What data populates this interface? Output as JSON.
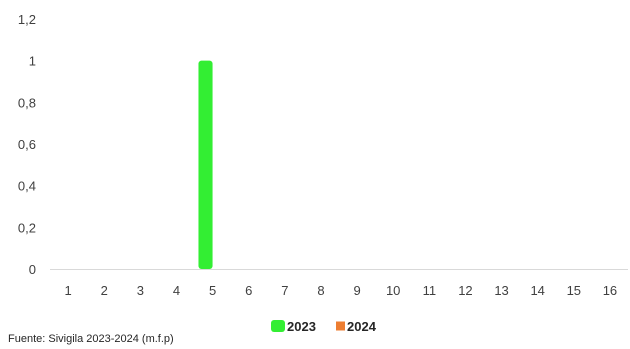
{
  "chart_data": {
    "type": "bar",
    "categories": [
      "1",
      "2",
      "3",
      "4",
      "5",
      "6",
      "7",
      "8",
      "9",
      "10",
      "11",
      "12",
      "13",
      "14",
      "15",
      "16"
    ],
    "series": [
      {
        "name": "2023",
        "color": "#33ee33",
        "values": [
          0,
          0,
          0,
          0,
          1,
          0,
          0,
          0,
          0,
          0,
          0,
          0,
          0,
          0,
          0,
          0
        ]
      },
      {
        "name": "2024",
        "color": "#ed7d31",
        "values": [
          0,
          0,
          0,
          0,
          0,
          0,
          0,
          0,
          0,
          0,
          0,
          0,
          0,
          0,
          0,
          0
        ]
      }
    ],
    "y_ticks": [
      "0",
      "0,2",
      "0,4",
      "0,6",
      "0,8",
      "1",
      "1,2"
    ],
    "ylim": [
      0,
      1.2
    ],
    "grid": false,
    "legend_position": "bottom"
  },
  "source": "Fuente: Sivigila 2023-2024 (m.f.p)"
}
